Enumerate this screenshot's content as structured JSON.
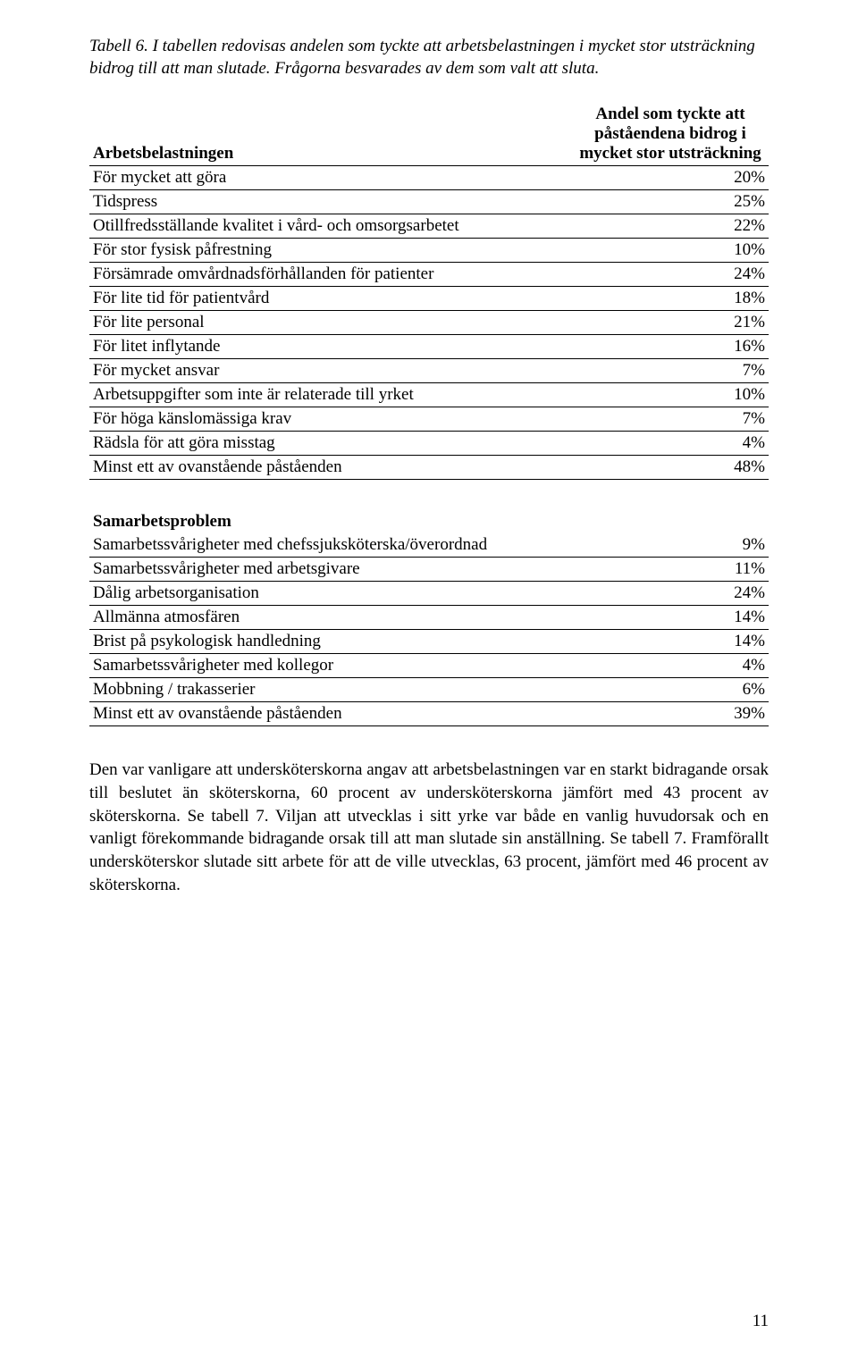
{
  "caption": "Tabell 6. I tabellen redovisas andelen som tyckte att arbetsbelastningen i mycket stor utsträckning bidrog till att man slutade. Frågorna besvarades av dem som valt att sluta.",
  "table1": {
    "section_label": "Arbetsbelastningen",
    "header_col": "Andel som tyckte att påståendena bidrog i mycket stor utsträckning",
    "rows": [
      {
        "label": "För mycket att göra",
        "val": "20%"
      },
      {
        "label": "Tidspress",
        "val": "25%"
      },
      {
        "label": "Otillfredsställande kvalitet i vård- och omsorgsarbetet",
        "val": "22%"
      },
      {
        "label": "För stor fysisk påfrestning",
        "val": "10%"
      },
      {
        "label": "Försämrade omvårdnadsförhållanden för patienter",
        "val": "24%"
      },
      {
        "label": "För lite tid för patientvård",
        "val": "18%"
      },
      {
        "label": "För lite personal",
        "val": "21%"
      },
      {
        "label": "För litet inflytande",
        "val": "16%"
      },
      {
        "label": "För mycket ansvar",
        "val": "7%"
      },
      {
        "label": "Arbetsuppgifter som inte är relaterade  till yrket",
        "val": "10%"
      },
      {
        "label": "För höga känslomässiga krav",
        "val": "7%"
      },
      {
        "label": "Rädsla för att göra misstag",
        "val": "4%"
      },
      {
        "label": "Minst ett av ovanstående påståenden",
        "val": "48%"
      }
    ]
  },
  "table2": {
    "section_label": "Samarbetsproblem",
    "rows": [
      {
        "label": "Samarbetssvårigheter med chefssjuksköterska/överordnad",
        "val": "9%"
      },
      {
        "label": "Samarbetssvårigheter med arbetsgivare",
        "val": "11%"
      },
      {
        "label": "Dålig arbetsorganisation",
        "val": "24%"
      },
      {
        "label": "Allmänna atmosfären",
        "val": "14%"
      },
      {
        "label": "Brist på psykologisk handledning",
        "val": "14%"
      },
      {
        "label": "Samarbetssvårigheter med kollegor",
        "val": "4%"
      },
      {
        "label": "Mobbning / trakasserier",
        "val": "6%"
      },
      {
        "label": "Minst ett av  ovanstående påståenden",
        "val": "39%"
      }
    ]
  },
  "paragraph": "Den var vanligare att undersköterskorna angav att arbetsbelastningen var en starkt bidragande orsak till beslutet än sköterskorna, 60 procent av undersköterskorna jämfört med 43 procent av sköterskorna. Se tabell 7. Viljan att utvecklas i sitt yrke var både en vanlig huvudorsak och en vanligt förekommande bidragande orsak till att man slutade sin anställning. Se tabell 7. Framförallt undersköterskor slutade sitt arbete för att de ville utvecklas, 63 procent, jämfört med 46 procent av sköterskorna.",
  "page_number": "11"
}
